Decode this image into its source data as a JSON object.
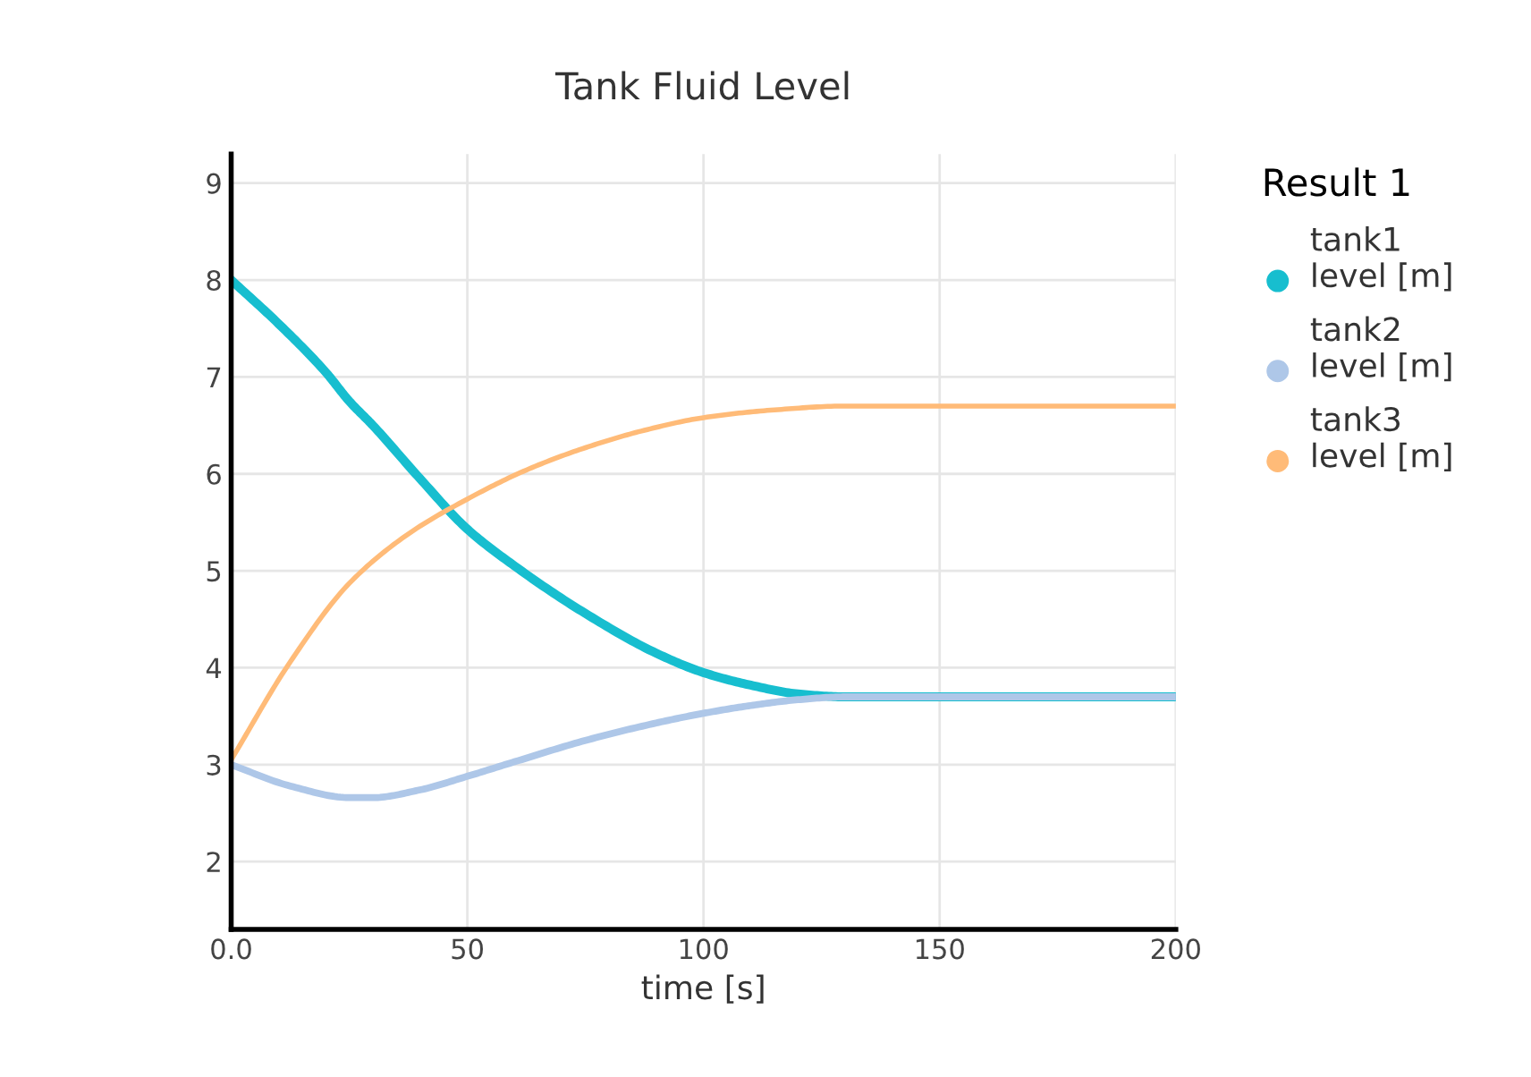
{
  "chart_data": {
    "type": "line",
    "title": "Tank Fluid Level",
    "xlabel": "time [s]",
    "legend_title": "Result 1",
    "xlim": [
      0,
      200
    ],
    "ylim": [
      1.3,
      9.3
    ],
    "xticks": [
      {
        "value": 0,
        "label": "0.0"
      },
      50,
      100,
      150,
      200
    ],
    "yticks": [
      2,
      3,
      4,
      5,
      6,
      7,
      8,
      9
    ],
    "grid": true,
    "legend": "right",
    "marker": "none",
    "line_style": "solid",
    "series": [
      {
        "name": "tank1\nlevel [m]",
        "color": "#17becf",
        "x": [
          0,
          10,
          20,
          25,
          30,
          40,
          50,
          60,
          75,
          90,
          100,
          110,
          120,
          130,
          140,
          200
        ],
        "values": [
          8.0,
          7.55,
          7.05,
          6.75,
          6.5,
          5.95,
          5.43,
          5.05,
          4.56,
          4.15,
          3.95,
          3.82,
          3.73,
          3.7,
          3.7,
          3.7
        ]
      },
      {
        "name": "tank2\nlevel [m]",
        "color": "#aec7e8",
        "x": [
          0,
          12.5,
          25,
          30,
          40,
          50,
          60,
          75,
          90,
          100,
          110,
          120,
          130,
          140,
          200
        ],
        "values": [
          3.0,
          2.78,
          2.66,
          2.66,
          2.74,
          2.88,
          3.03,
          3.25,
          3.43,
          3.53,
          3.61,
          3.67,
          3.7,
          3.7,
          3.7
        ]
      },
      {
        "name": "tank3\nlevel [m]",
        "color": "#ffbb78",
        "x": [
          0,
          12.5,
          25,
          37.5,
          50,
          62.5,
          75,
          87.5,
          100,
          115,
          130,
          140,
          200
        ],
        "values": [
          3.05,
          4.06,
          4.87,
          5.38,
          5.74,
          6.04,
          6.27,
          6.45,
          6.58,
          6.66,
          6.7,
          6.7,
          6.7
        ]
      }
    ]
  }
}
